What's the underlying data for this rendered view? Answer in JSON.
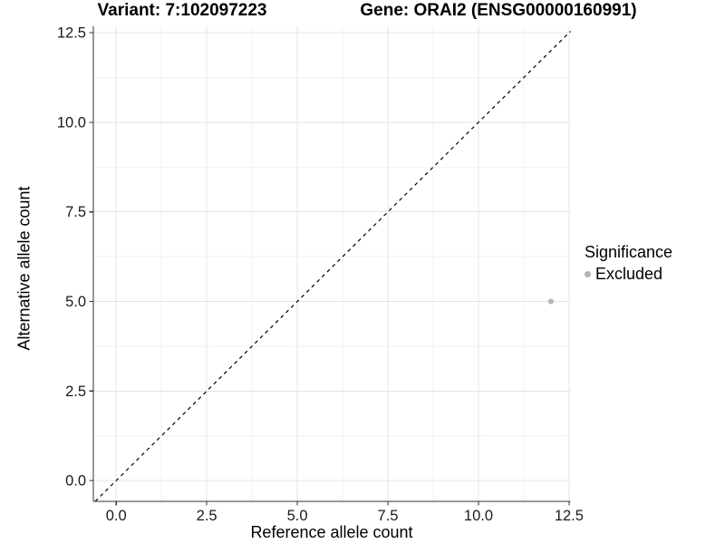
{
  "titles": {
    "variant": "Variant: 7:102097223",
    "gene": "Gene: ORAI2 (ENSG00000160991)"
  },
  "axes": {
    "x_label": "Reference allele count",
    "y_label": "Alternative allele count"
  },
  "legend": {
    "title": "Significance",
    "items": [
      {
        "label": "Excluded",
        "color": "#b4b4b4"
      }
    ]
  },
  "chart_data": {
    "type": "scatter",
    "title": "",
    "xlabel": "Reference allele count",
    "ylabel": "Alternative allele count",
    "x_ticks": [
      0,
      2.5,
      5,
      7.5,
      10,
      12.5
    ],
    "y_ticks": [
      0,
      2.5,
      5,
      7.5,
      10,
      12.5
    ],
    "tick_format": "one_decimal",
    "xlim": [
      -0.63,
      12.54
    ],
    "ylim": [
      -0.58,
      12.68
    ],
    "grid": "major and minor gridlines, light gray on white panel",
    "series": [
      {
        "name": "Excluded",
        "color": "#b4b4b4",
        "points": [
          {
            "x": 12,
            "y": 5
          }
        ]
      }
    ],
    "identity_line": {
      "equation": "y = x",
      "style": "dashed",
      "color": "#000000"
    },
    "panel_colors": {
      "background": "#ffffff",
      "grid_major": "#e4e4e4",
      "grid_minor": "#f1f1f1",
      "axis_line": "#333333"
    }
  }
}
